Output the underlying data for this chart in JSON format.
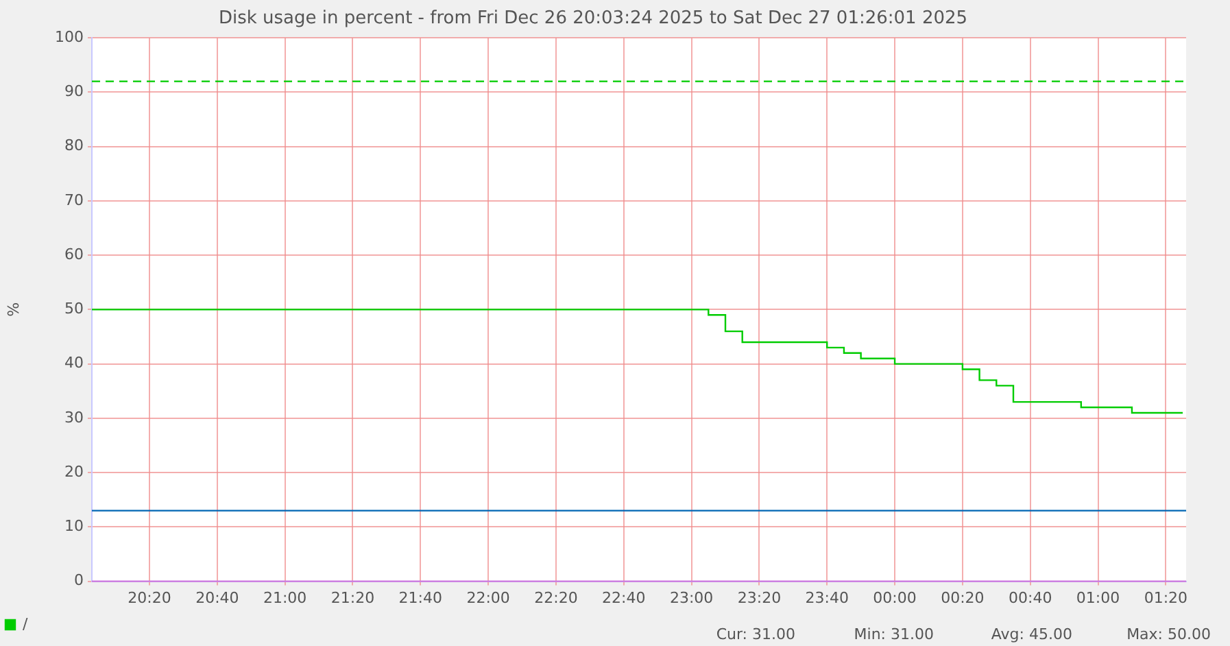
{
  "chart_data": {
    "type": "step",
    "title": "Disk usage in percent - from Fri Dec 26 20:03:24 2025 to Sat Dec 27 01:26:01 2025",
    "ylabel": "%",
    "series": [
      {
        "name": "/",
        "color": "#00cc00",
        "x": [
          "2025-12-26T20:03",
          "2025-12-26T23:05",
          "2025-12-26T23:10",
          "2025-12-26T23:15",
          "2025-12-26T23:40",
          "2025-12-26T23:45",
          "2025-12-26T23:50",
          "2025-12-27T00:00",
          "2025-12-27T00:20",
          "2025-12-27T00:25",
          "2025-12-27T00:30",
          "2025-12-27T00:35",
          "2025-12-27T00:55",
          "2025-12-27T01:10",
          "2025-12-27T01:25"
        ],
        "values": [
          50,
          49,
          46,
          44,
          43,
          42,
          41,
          40,
          39,
          37,
          36,
          33,
          32,
          31,
          31
        ]
      }
    ],
    "xlim": [
      "2025-12-26T20:03",
      "2025-12-27T01:26"
    ],
    "xticks": [
      {
        "value": "2025-12-26T20:20",
        "label": "20:20"
      },
      {
        "value": "2025-12-26T20:40",
        "label": "20:40"
      },
      {
        "value": "2025-12-26T21:00",
        "label": "21:00"
      },
      {
        "value": "2025-12-26T21:20",
        "label": "21:20"
      },
      {
        "value": "2025-12-26T21:40",
        "label": "21:40"
      },
      {
        "value": "2025-12-26T22:00",
        "label": "22:00"
      },
      {
        "value": "2025-12-26T22:20",
        "label": "22:20"
      },
      {
        "value": "2025-12-26T22:40",
        "label": "22:40"
      },
      {
        "value": "2025-12-26T23:00",
        "label": "23:00"
      },
      {
        "value": "2025-12-26T23:20",
        "label": "23:20"
      },
      {
        "value": "2025-12-26T23:40",
        "label": "23:40"
      },
      {
        "value": "2025-12-27T00:00",
        "label": "00:00"
      },
      {
        "value": "2025-12-27T00:20",
        "label": "00:20"
      },
      {
        "value": "2025-12-27T00:40",
        "label": "00:40"
      },
      {
        "value": "2025-12-27T01:00",
        "label": "01:00"
      },
      {
        "value": "2025-12-27T01:20",
        "label": "01:20"
      }
    ],
    "ylim": [
      0,
      100
    ],
    "yticks": [
      0,
      10,
      20,
      30,
      40,
      50,
      60,
      70,
      80,
      90,
      100
    ],
    "ref_lines": [
      {
        "axis": "y",
        "value": 92,
        "color": "#00cc00",
        "line_style": "dashed"
      },
      {
        "axis": "y",
        "value": 13,
        "color": "#0066b3",
        "line_style": "solid"
      },
      {
        "axis": "y",
        "value": 0,
        "color": "#cc77dd",
        "line_style": "solid"
      }
    ],
    "annotations": [
      "Cur: 31.00",
      "Min: 31.00",
      "Avg: 45.00",
      "Max: 50.00"
    ],
    "grid": true,
    "legend": "bottom left",
    "marker": "none",
    "line_style": "solid"
  }
}
